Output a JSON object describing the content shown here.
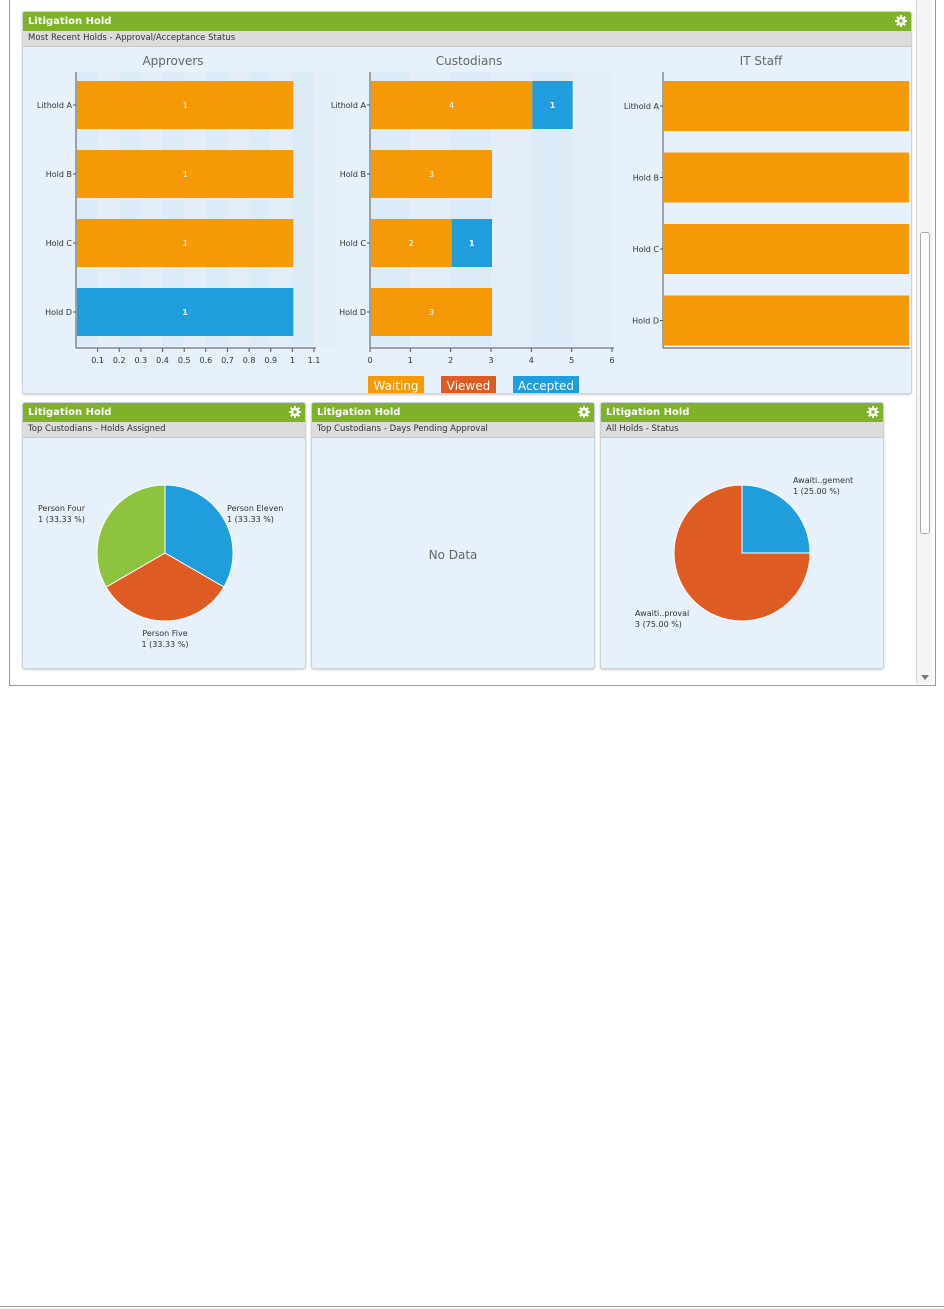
{
  "colors": {
    "waiting": "#f59a06",
    "viewed": "#de5c23",
    "accepted": "#1f9ddc",
    "green": "#8dc33f",
    "header": "#7fb22a"
  },
  "main_widget": {
    "title": "Litigation Hold",
    "subtitle": "Most Recent Holds - Approval/Acceptance Status",
    "icon": "gear-icon"
  },
  "chart_data": [
    {
      "type": "bar",
      "title": "Approvers",
      "categories": [
        "Lithold A",
        "Hold B",
        "Hold C",
        "Hold D"
      ],
      "series": [
        {
          "name": "Waiting",
          "values": [
            1,
            1,
            1,
            0
          ]
        },
        {
          "name": "Viewed",
          "values": [
            0,
            0,
            0,
            0
          ]
        },
        {
          "name": "Accepted",
          "values": [
            0,
            0,
            0,
            1
          ]
        }
      ],
      "xlim": [
        0,
        1.1
      ],
      "ticks": [
        "0.1",
        "0.2",
        "0.3",
        "0.4",
        "0.5",
        "0.6",
        "0.7",
        "0.8",
        "0.9",
        "1",
        "1.1"
      ]
    },
    {
      "type": "bar",
      "title": "Custodians",
      "categories": [
        "Lithold A",
        "Hold B",
        "Hold C",
        "Hold D"
      ],
      "series": [
        {
          "name": "Waiting",
          "values": [
            4,
            3,
            2,
            3
          ]
        },
        {
          "name": "Viewed",
          "values": [
            0,
            0,
            0,
            0
          ]
        },
        {
          "name": "Accepted",
          "values": [
            1,
            0,
            1,
            0
          ]
        }
      ],
      "xlim": [
        0,
        6
      ],
      "ticks": [
        "0",
        "1",
        "2",
        "3",
        "4",
        "5",
        "6"
      ]
    },
    {
      "type": "bar",
      "title": "IT Staff",
      "categories": [
        "Lithold A",
        "Hold B",
        "Hold C",
        "Hold D"
      ],
      "series": [
        {
          "name": "Waiting",
          "values": [
            1,
            1,
            1,
            1
          ]
        }
      ],
      "xlim": [
        0,
        1
      ],
      "ticks": []
    },
    {
      "type": "pie",
      "slices": [
        {
          "label": "Person Eleven",
          "value": 1,
          "text": "1 (33.33 %)"
        },
        {
          "label": "Person Five",
          "value": 1,
          "text": "1 (33.33 %)"
        },
        {
          "label": "Person Four",
          "value": 1,
          "text": "1 (33.33 %)"
        }
      ]
    },
    {
      "type": "pie",
      "slices": [
        {
          "label": "Awaiti..gement",
          "value": 1,
          "text": "1 (25.00 %)"
        },
        {
          "label": "Awaiti..proval",
          "value": 3,
          "text": "3 (75.00 %)"
        }
      ]
    }
  ],
  "legend": [
    "Waiting",
    "Viewed",
    "Accepted"
  ],
  "widget_custodians": {
    "title": "Litigation Hold",
    "subtitle": "Top Custodians - Holds Assigned"
  },
  "widget_pending": {
    "title": "Litigation Hold",
    "subtitle": "Top Custodians - Days Pending Approval",
    "empty_text": "No Data"
  },
  "widget_status": {
    "title": "Litigation Hold",
    "subtitle": "All Holds - Status"
  }
}
